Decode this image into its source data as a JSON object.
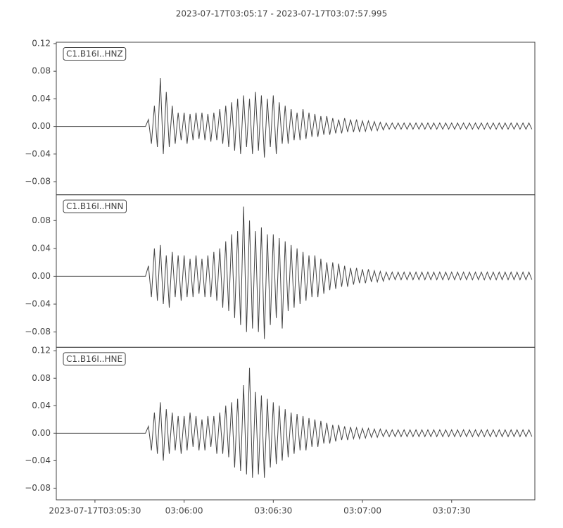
{
  "chart_data": {
    "type": "line",
    "title": "2023-07-17T03:05:17  -  2023-07-17T03:07:57.995",
    "xlim": [
      "03:05:17",
      "03:07:57.995"
    ],
    "xticks": [
      {
        "value": "03:05:30",
        "label": "2023-07-17T03:05:30"
      },
      "03:06:00",
      "03:06:30",
      "03:07:00",
      "03:07:30"
    ],
    "x": [
      "03:05:17",
      "03:05:18",
      "03:05:19",
      "03:05:20",
      "03:05:21",
      "03:05:22",
      "03:05:23",
      "03:05:24",
      "03:05:25",
      "03:05:26",
      "03:05:27",
      "03:05:28",
      "03:05:29",
      "03:05:30",
      "03:05:31",
      "03:05:32",
      "03:05:33",
      "03:05:34",
      "03:05:35",
      "03:05:36",
      "03:05:37",
      "03:05:38",
      "03:05:39",
      "03:05:40",
      "03:05:41",
      "03:05:42",
      "03:05:43",
      "03:05:44",
      "03:05:45",
      "03:05:46",
      "03:05:47",
      "03:05:48",
      "03:05:49",
      "03:05:50",
      "03:05:51",
      "03:05:52",
      "03:05:53",
      "03:05:54",
      "03:05:55",
      "03:05:56",
      "03:05:57",
      "03:05:58",
      "03:05:59",
      "03:06:00",
      "03:06:01",
      "03:06:02",
      "03:06:03",
      "03:06:04",
      "03:06:05",
      "03:06:06",
      "03:06:07",
      "03:06:08",
      "03:06:09",
      "03:06:10",
      "03:06:11",
      "03:06:12",
      "03:06:13",
      "03:06:14",
      "03:06:15",
      "03:06:16",
      "03:06:17",
      "03:06:18",
      "03:06:19",
      "03:06:20",
      "03:06:21",
      "03:06:22",
      "03:06:23",
      "03:06:24",
      "03:06:25",
      "03:06:26",
      "03:06:27",
      "03:06:28",
      "03:06:29",
      "03:06:30",
      "03:06:31",
      "03:06:32",
      "03:06:33",
      "03:06:34",
      "03:06:35",
      "03:06:36",
      "03:06:37",
      "03:06:38",
      "03:06:39",
      "03:06:40",
      "03:06:41",
      "03:06:42",
      "03:06:43",
      "03:06:44",
      "03:06:45",
      "03:06:46",
      "03:06:47",
      "03:06:48",
      "03:06:49",
      "03:06:50",
      "03:06:51",
      "03:06:52",
      "03:06:53",
      "03:06:54",
      "03:06:55",
      "03:06:56",
      "03:06:57",
      "03:06:58",
      "03:06:59",
      "03:07:00",
      "03:07:01",
      "03:07:02",
      "03:07:03",
      "03:07:04",
      "03:07:05",
      "03:07:06",
      "03:07:07",
      "03:07:08",
      "03:07:09",
      "03:07:10",
      "03:07:11",
      "03:07:12",
      "03:07:13",
      "03:07:14",
      "03:07:15",
      "03:07:16",
      "03:07:17",
      "03:07:18",
      "03:07:19",
      "03:07:20",
      "03:07:21",
      "03:07:22",
      "03:07:23",
      "03:07:24",
      "03:07:25",
      "03:07:26",
      "03:07:27",
      "03:07:28",
      "03:07:29",
      "03:07:30",
      "03:07:31",
      "03:07:32",
      "03:07:33",
      "03:07:34",
      "03:07:35",
      "03:07:36",
      "03:07:37",
      "03:07:38",
      "03:07:39",
      "03:07:40",
      "03:07:41",
      "03:07:42",
      "03:07:43",
      "03:07:44",
      "03:07:45",
      "03:07:46",
      "03:07:47",
      "03:07:48",
      "03:07:49",
      "03:07:50",
      "03:07:51",
      "03:07:52",
      "03:07:53",
      "03:07:54",
      "03:07:55",
      "03:07:56",
      "03:07:57"
    ],
    "series": [
      {
        "name": "C1.B16I..HNZ",
        "color": "#444444",
        "ylim": [
          -0.099,
          0.122
        ],
        "yticks": [
          {
            "value": 0.12,
            "label": "0.12"
          },
          {
            "value": 0.08,
            "label": "0.08"
          },
          {
            "value": 0.04,
            "label": "0.04"
          },
          {
            "value": 0,
            "label": "0.00"
          },
          {
            "value": -0.04,
            "label": "−0.04"
          },
          {
            "value": -0.08,
            "label": "−0.08"
          }
        ],
        "values": [
          0,
          0,
          0,
          0,
          0,
          0,
          0,
          0,
          0,
          0,
          0,
          0,
          0,
          0,
          0,
          0,
          0,
          0,
          0,
          0,
          0,
          0,
          0,
          0,
          0,
          0,
          0,
          0,
          0,
          0,
          0,
          0.01,
          -0.025,
          0.03,
          -0.03,
          0.07,
          -0.04,
          0.05,
          -0.03,
          0.03,
          -0.025,
          0.02,
          -0.02,
          0.02,
          -0.025,
          0.018,
          -0.02,
          0.02,
          -0.018,
          0.02,
          -0.02,
          0.018,
          -0.022,
          0.02,
          -0.02,
          0.025,
          -0.025,
          0.03,
          -0.03,
          0.035,
          -0.035,
          0.04,
          -0.04,
          0.045,
          -0.03,
          0.04,
          -0.04,
          0.05,
          -0.035,
          0.045,
          -0.045,
          0.04,
          -0.03,
          0.045,
          -0.04,
          0.035,
          -0.025,
          0.03,
          -0.025,
          0.025,
          -0.02,
          0.02,
          -0.02,
          0.025,
          -0.018,
          0.02,
          -0.015,
          0.018,
          -0.015,
          0.015,
          -0.012,
          0.015,
          -0.012,
          0.012,
          -0.01,
          0.01,
          -0.01,
          0.012,
          -0.008,
          0.01,
          -0.008,
          0.01,
          -0.008,
          0.008,
          -0.007,
          0.008,
          -0.006,
          0.007,
          -0.006,
          0.006,
          -0.005,
          0.005,
          -0.004,
          0.005,
          -0.004,
          0.005,
          -0.004,
          0.005,
          -0.004,
          0.005,
          -0.004,
          0.005,
          -0.004,
          0.005,
          -0.004,
          0.005,
          -0.004,
          0.005,
          -0.004,
          0.005,
          -0.004,
          0.005,
          -0.004,
          0.005,
          -0.004,
          0.005,
          -0.004,
          0.005,
          -0.004,
          0.005,
          -0.004,
          0.005,
          -0.004,
          0.005,
          -0.004,
          0.005,
          -0.004,
          0.005,
          -0.004,
          0.005,
          -0.004,
          0.005,
          -0.004,
          0.005,
          -0.004,
          0.005,
          -0.004,
          0.005,
          -0.004,
          0.005,
          -0.004
        ]
      },
      {
        "name": "C1.B16I..HNN",
        "color": "#444444",
        "ylim": [
          -0.102,
          0.117
        ],
        "yticks": [
          {
            "value": 0.08,
            "label": "0.08"
          },
          {
            "value": 0.04,
            "label": "0.04"
          },
          {
            "value": 0,
            "label": "0.00"
          },
          {
            "value": -0.04,
            "label": "−0.04"
          },
          {
            "value": -0.08,
            "label": "−0.08"
          }
        ],
        "values": [
          0,
          0,
          0,
          0,
          0,
          0,
          0,
          0,
          0,
          0,
          0,
          0,
          0,
          0,
          0,
          0,
          0,
          0,
          0,
          0,
          0,
          0,
          0,
          0,
          0,
          0,
          0,
          0,
          0,
          0,
          0,
          0.015,
          -0.03,
          0.04,
          -0.035,
          0.045,
          -0.04,
          0.03,
          -0.045,
          0.035,
          -0.03,
          0.03,
          -0.035,
          0.03,
          -0.03,
          0.025,
          -0.03,
          0.03,
          -0.025,
          0.025,
          -0.03,
          0.03,
          -0.03,
          0.035,
          -0.035,
          0.04,
          -0.045,
          0.05,
          -0.05,
          0.06,
          -0.06,
          0.065,
          -0.07,
          0.1,
          -0.08,
          0.08,
          -0.075,
          0.065,
          -0.08,
          0.07,
          -0.09,
          0.06,
          -0.07,
          0.06,
          -0.06,
          0.055,
          -0.075,
          0.05,
          -0.05,
          0.045,
          -0.045,
          0.04,
          -0.04,
          0.035,
          -0.035,
          0.03,
          -0.03,
          0.03,
          -0.03,
          0.025,
          -0.025,
          0.02,
          -0.02,
          0.02,
          -0.018,
          0.018,
          -0.015,
          0.015,
          -0.015,
          0.012,
          -0.012,
          0.012,
          -0.01,
          0.01,
          -0.01,
          0.01,
          -0.008,
          0.008,
          -0.008,
          0.007,
          -0.007,
          0.006,
          -0.005,
          0.006,
          -0.005,
          0.006,
          -0.005,
          0.006,
          -0.005,
          0.006,
          -0.005,
          0.006,
          -0.005,
          0.006,
          -0.005,
          0.006,
          -0.005,
          0.006,
          -0.005,
          0.006,
          -0.005,
          0.006,
          -0.005,
          0.006,
          -0.005,
          0.006,
          -0.005,
          0.006,
          -0.005,
          0.006,
          -0.005,
          0.006,
          -0.005,
          0.006,
          -0.005,
          0.006,
          -0.005,
          0.006,
          -0.005,
          0.006,
          -0.005,
          0.006,
          -0.005,
          0.006,
          -0.005,
          0.006,
          -0.005,
          0.006,
          -0.005,
          0.006,
          -0.005
        ]
      },
      {
        "name": "C1.B16I..HNE",
        "color": "#444444",
        "ylim": [
          -0.097,
          0.125
        ],
        "yticks": [
          {
            "value": 0.12,
            "label": "0.12"
          },
          {
            "value": 0.08,
            "label": "0.08"
          },
          {
            "value": 0.04,
            "label": "0.04"
          },
          {
            "value": 0,
            "label": "0.00"
          },
          {
            "value": -0.04,
            "label": "−0.04"
          },
          {
            "value": -0.08,
            "label": "−0.08"
          }
        ],
        "values": [
          0,
          0,
          0,
          0,
          0,
          0,
          0,
          0,
          0,
          0,
          0,
          0,
          0,
          0,
          0,
          0,
          0,
          0,
          0,
          0,
          0,
          0,
          0,
          0,
          0,
          0,
          0,
          0,
          0,
          0,
          0,
          0.01,
          -0.025,
          0.03,
          -0.03,
          0.045,
          -0.04,
          0.035,
          -0.03,
          0.03,
          -0.025,
          0.025,
          -0.03,
          0.025,
          -0.025,
          0.03,
          -0.02,
          0.025,
          -0.025,
          0.02,
          -0.025,
          0.025,
          -0.02,
          0.025,
          -0.03,
          0.03,
          -0.03,
          0.04,
          -0.035,
          0.045,
          -0.05,
          0.05,
          -0.055,
          0.07,
          -0.06,
          0.095,
          -0.065,
          0.06,
          -0.06,
          0.055,
          -0.065,
          0.05,
          -0.05,
          0.045,
          -0.045,
          0.04,
          -0.04,
          0.035,
          -0.035,
          0.03,
          -0.03,
          0.028,
          -0.025,
          0.025,
          -0.025,
          0.022,
          -0.02,
          0.02,
          -0.02,
          0.018,
          -0.015,
          0.015,
          -0.015,
          0.012,
          -0.012,
          0.012,
          -0.01,
          0.01,
          -0.01,
          0.009,
          -0.008,
          0.008,
          -0.008,
          0.007,
          -0.007,
          0.007,
          -0.006,
          0.006,
          -0.006,
          0.006,
          -0.005,
          0.005,
          -0.005,
          0.005,
          -0.005,
          0.005,
          -0.005,
          0.005,
          -0.005,
          0.005,
          -0.005,
          0.005,
          -0.005,
          0.005,
          -0.005,
          0.005,
          -0.005,
          0.005,
          -0.005,
          0.005,
          -0.005,
          0.005,
          -0.005,
          0.005,
          -0.005,
          0.005,
          -0.005,
          0.005,
          -0.005,
          0.005,
          -0.005,
          0.005,
          -0.005,
          0.005,
          -0.005,
          0.005,
          -0.005,
          0.005,
          -0.005,
          0.005,
          -0.005,
          0.005,
          -0.005,
          0.005,
          -0.005,
          0.005,
          -0.005,
          0.005,
          -0.005,
          0.005,
          -0.005
        ]
      }
    ]
  }
}
